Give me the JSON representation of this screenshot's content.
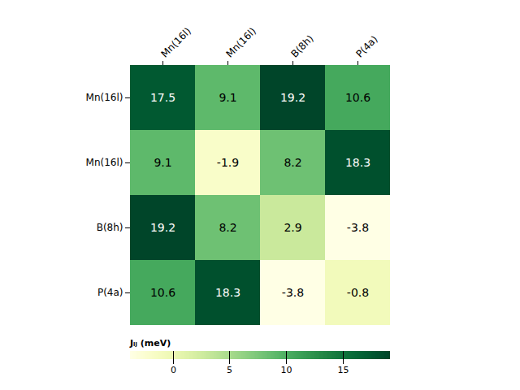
{
  "chart_data": {
    "type": "heatmap",
    "x_categories": [
      "Mn(16l)",
      "Mn(16l)",
      "B(8h)",
      "P(4a)"
    ],
    "y_categories": [
      "Mn(16l)",
      "Mn(16l)",
      "B(8h)",
      "P(4a)"
    ],
    "values": [
      [
        17.5,
        9.1,
        19.2,
        10.6
      ],
      [
        9.1,
        -1.9,
        8.2,
        18.3
      ],
      [
        19.2,
        8.2,
        2.9,
        -3.8
      ],
      [
        10.6,
        18.3,
        -3.8,
        -0.8
      ]
    ],
    "color": "YlGn",
    "colorbar_range": [
      -3.8,
      19.2
    ],
    "colorbar_ticks": [
      0,
      5,
      10,
      15
    ],
    "colorbar_label": "Jᵢⱼ (meV)",
    "data_labels": true
  }
}
